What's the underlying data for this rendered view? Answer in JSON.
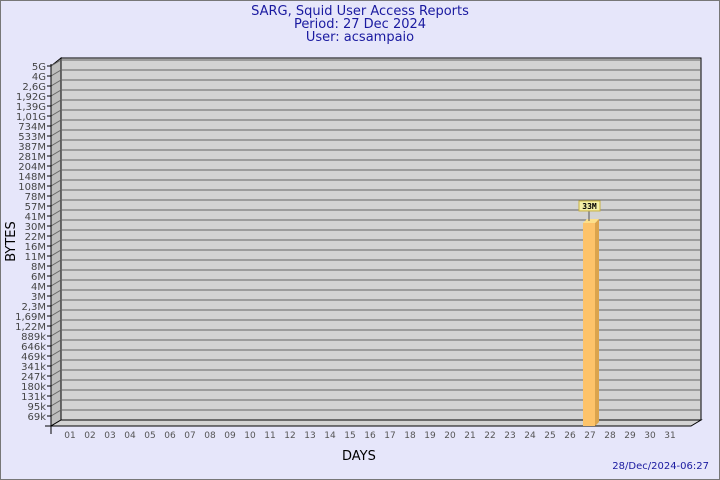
{
  "chart_data": {
    "type": "bar",
    "title": "SARG, Squid User Access Reports",
    "subtitle": "Period: 27 Dec 2024",
    "user": "User: acsampaio",
    "xlabel": "DAYS",
    "ylabel": "BYTES",
    "y_scale": "log",
    "y_ticks": [
      "5G",
      "4G",
      "2,6G",
      "1,92G",
      "1,39G",
      "1,01G",
      "734M",
      "533M",
      "387M",
      "281M",
      "204M",
      "148M",
      "108M",
      "78M",
      "57M",
      "41M",
      "30M",
      "22M",
      "16M",
      "11M",
      "8M",
      "6M",
      "4M",
      "3M",
      "2,3M",
      "1,69M",
      "1,22M",
      "889k",
      "646k",
      "469k",
      "341k",
      "247k",
      "180k",
      "131k",
      "95k",
      "69k"
    ],
    "y_tick_values": [
      5000000000.0,
      4000000000.0,
      2600000000.0,
      1920000000.0,
      1390000000.0,
      1010000000.0,
      734000000.0,
      533000000.0,
      387000000.0,
      281000000.0,
      204000000.0,
      148000000.0,
      108000000.0,
      78000000.0,
      57000000.0,
      41000000.0,
      30000000.0,
      22000000.0,
      16000000.0,
      11000000.0,
      8000000.0,
      6000000.0,
      4000000.0,
      3000000.0,
      2300000.0,
      1690000.0,
      1220000.0,
      889000.0,
      646000.0,
      469000.0,
      341000.0,
      247000.0,
      180000.0,
      131000.0,
      95000.0,
      69000.0
    ],
    "categories": [
      "01",
      "02",
      "03",
      "04",
      "05",
      "06",
      "07",
      "08",
      "09",
      "10",
      "11",
      "12",
      "13",
      "14",
      "15",
      "16",
      "17",
      "18",
      "19",
      "20",
      "21",
      "22",
      "23",
      "24",
      "25",
      "26",
      "27",
      "28",
      "29",
      "30",
      "31"
    ],
    "bars": [
      {
        "day": "27",
        "value": 33000000,
        "label": "33M"
      }
    ],
    "grid": true,
    "bar_color": "#fdc36a"
  },
  "footer": {
    "timestamp": "28/Dec/2024-06:27"
  }
}
